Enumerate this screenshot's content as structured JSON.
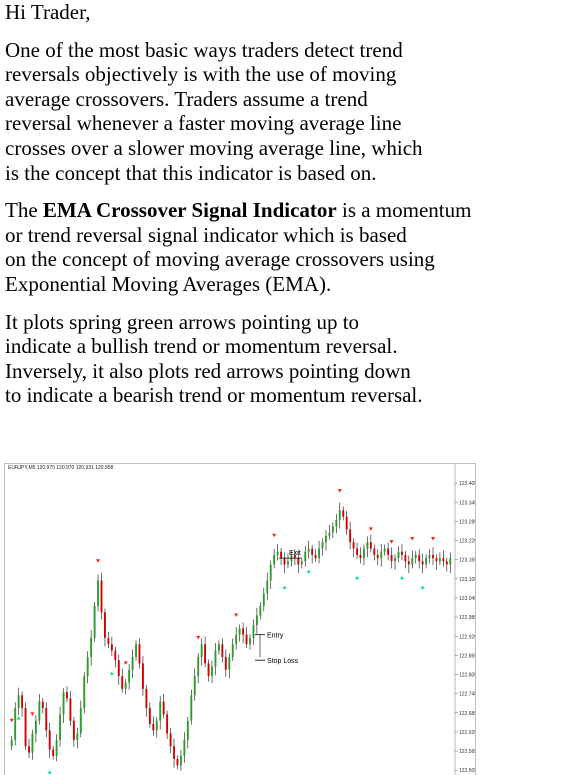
{
  "greeting": "Hi Trader,",
  "para1": "One of the most basic ways traders detect trend\nreversals objectively is with the use of moving\naverage crossovers. Traders assume a trend\nreversal whenever a faster moving average line\ncrosses over a slower moving average line, which\nis the concept that this indicator is based on.",
  "para2": {
    "before": "The ",
    "bold": "EMA Crossover Signal Indicator",
    "after": " is a momentum\nor trend reversal signal indicator which is based\non the concept of moving average crossovers using\nExponential Moving Averages (EMA)."
  },
  "para3": "It plots spring green arrows pointing up to\nindicate a bullish trend or momentum reversal.\nInversely, it also plots red arrows pointing down\nto indicate a bearish trend or momentum reversal.",
  "chart_data": {
    "type": "candlestick",
    "header": "EURJPY,M5  120.970 120.970 120.931 120.958",
    "y_ticks": [
      "123.405",
      "123.345",
      "123.285",
      "123.225",
      "123.165",
      "123.105",
      "123.045",
      "122.985",
      "122.925",
      "122.865",
      "122.805",
      "122.745",
      "122.685",
      "122.625",
      "122.565",
      "122.505"
    ],
    "ylim": [
      122.49,
      123.44
    ],
    "annotations": {
      "exit": "Exit",
      "entry": "Entry",
      "stop_loss": "Stop Loss"
    },
    "closes": [
      122.6,
      122.7,
      122.74,
      122.7,
      122.58,
      122.56,
      122.62,
      122.66,
      122.72,
      122.7,
      122.63,
      122.57,
      122.55,
      122.6,
      122.68,
      122.75,
      122.73,
      122.66,
      122.6,
      122.62,
      122.7,
      122.8,
      122.86,
      122.92,
      123.02,
      123.1,
      123.0,
      122.92,
      122.9,
      122.88,
      122.85,
      122.8,
      122.76,
      122.78,
      122.82,
      122.86,
      122.9,
      122.84,
      122.76,
      122.7,
      122.65,
      122.63,
      122.66,
      122.72,
      122.68,
      122.62,
      122.58,
      122.54,
      122.52,
      122.55,
      122.6,
      122.66,
      122.74,
      122.8,
      122.86,
      122.9,
      122.84,
      122.8,
      122.83,
      122.88,
      122.9,
      122.86,
      122.82,
      122.86,
      122.9,
      122.93,
      122.95,
      122.93,
      122.9,
      122.92,
      122.96,
      122.99,
      123.02,
      123.06,
      123.1,
      123.15,
      123.18,
      123.19,
      123.17,
      123.15,
      123.16,
      123.18,
      123.17,
      123.15,
      123.16,
      123.19,
      123.2,
      123.18,
      123.17,
      123.2,
      123.22,
      123.24,
      123.25,
      123.27,
      123.29,
      123.32,
      123.3,
      123.26,
      123.22,
      123.2,
      123.18,
      123.17,
      123.2,
      123.22,
      123.2,
      123.18,
      123.17,
      123.19,
      123.2,
      123.18,
      123.16,
      123.17,
      123.19,
      123.18,
      123.16,
      123.15,
      123.17,
      123.18,
      123.16,
      123.15,
      123.17,
      123.18,
      123.17,
      123.16,
      123.17,
      123.16,
      123.15,
      123.17
    ]
  },
  "colors": {
    "bull": "#2e9b2e",
    "bear": "#d40000",
    "arrow_up": "#00e676",
    "arrow_down": "#ff1a1a",
    "wick": "#111111"
  }
}
